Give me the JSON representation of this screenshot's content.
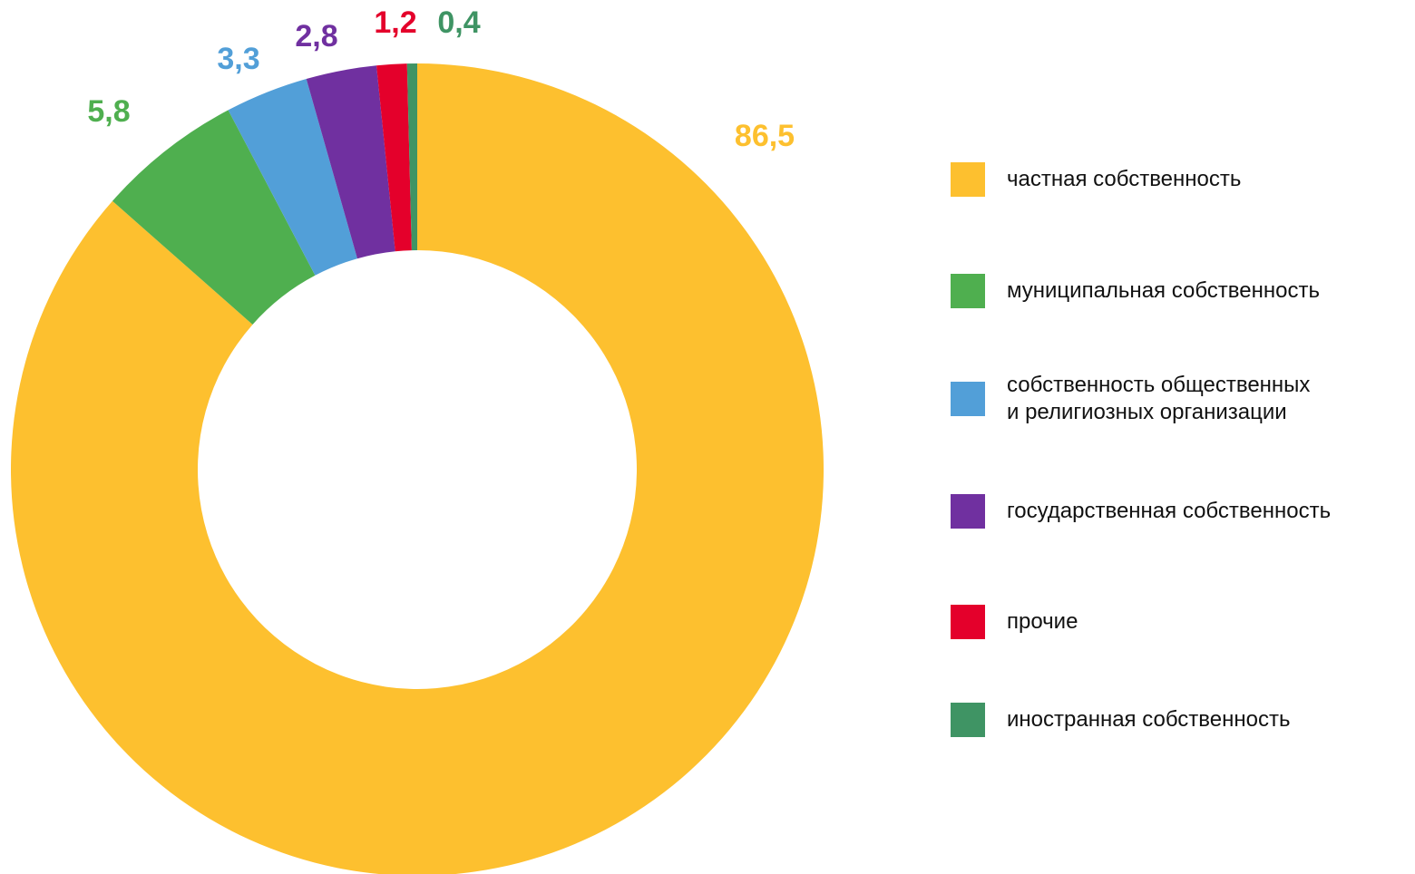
{
  "chart_data": {
    "type": "donut",
    "categories": [
      "частная собственность",
      "муниципальная собственность",
      "собственность общественных\nи религиозных организации",
      "государственная собственность",
      "прочие",
      "иностранная собственность"
    ],
    "values": [
      86.5,
      5.8,
      3.3,
      2.8,
      1.2,
      0.4
    ],
    "value_labels": [
      "86,5",
      "5,8",
      "3,3",
      "2,8",
      "1,2",
      "0,4"
    ],
    "colors": [
      "#FDC02F",
      "#4FAF4F",
      "#529FD8",
      "#7030A0",
      "#E4002B",
      "#3F9464"
    ],
    "legend": "right"
  }
}
